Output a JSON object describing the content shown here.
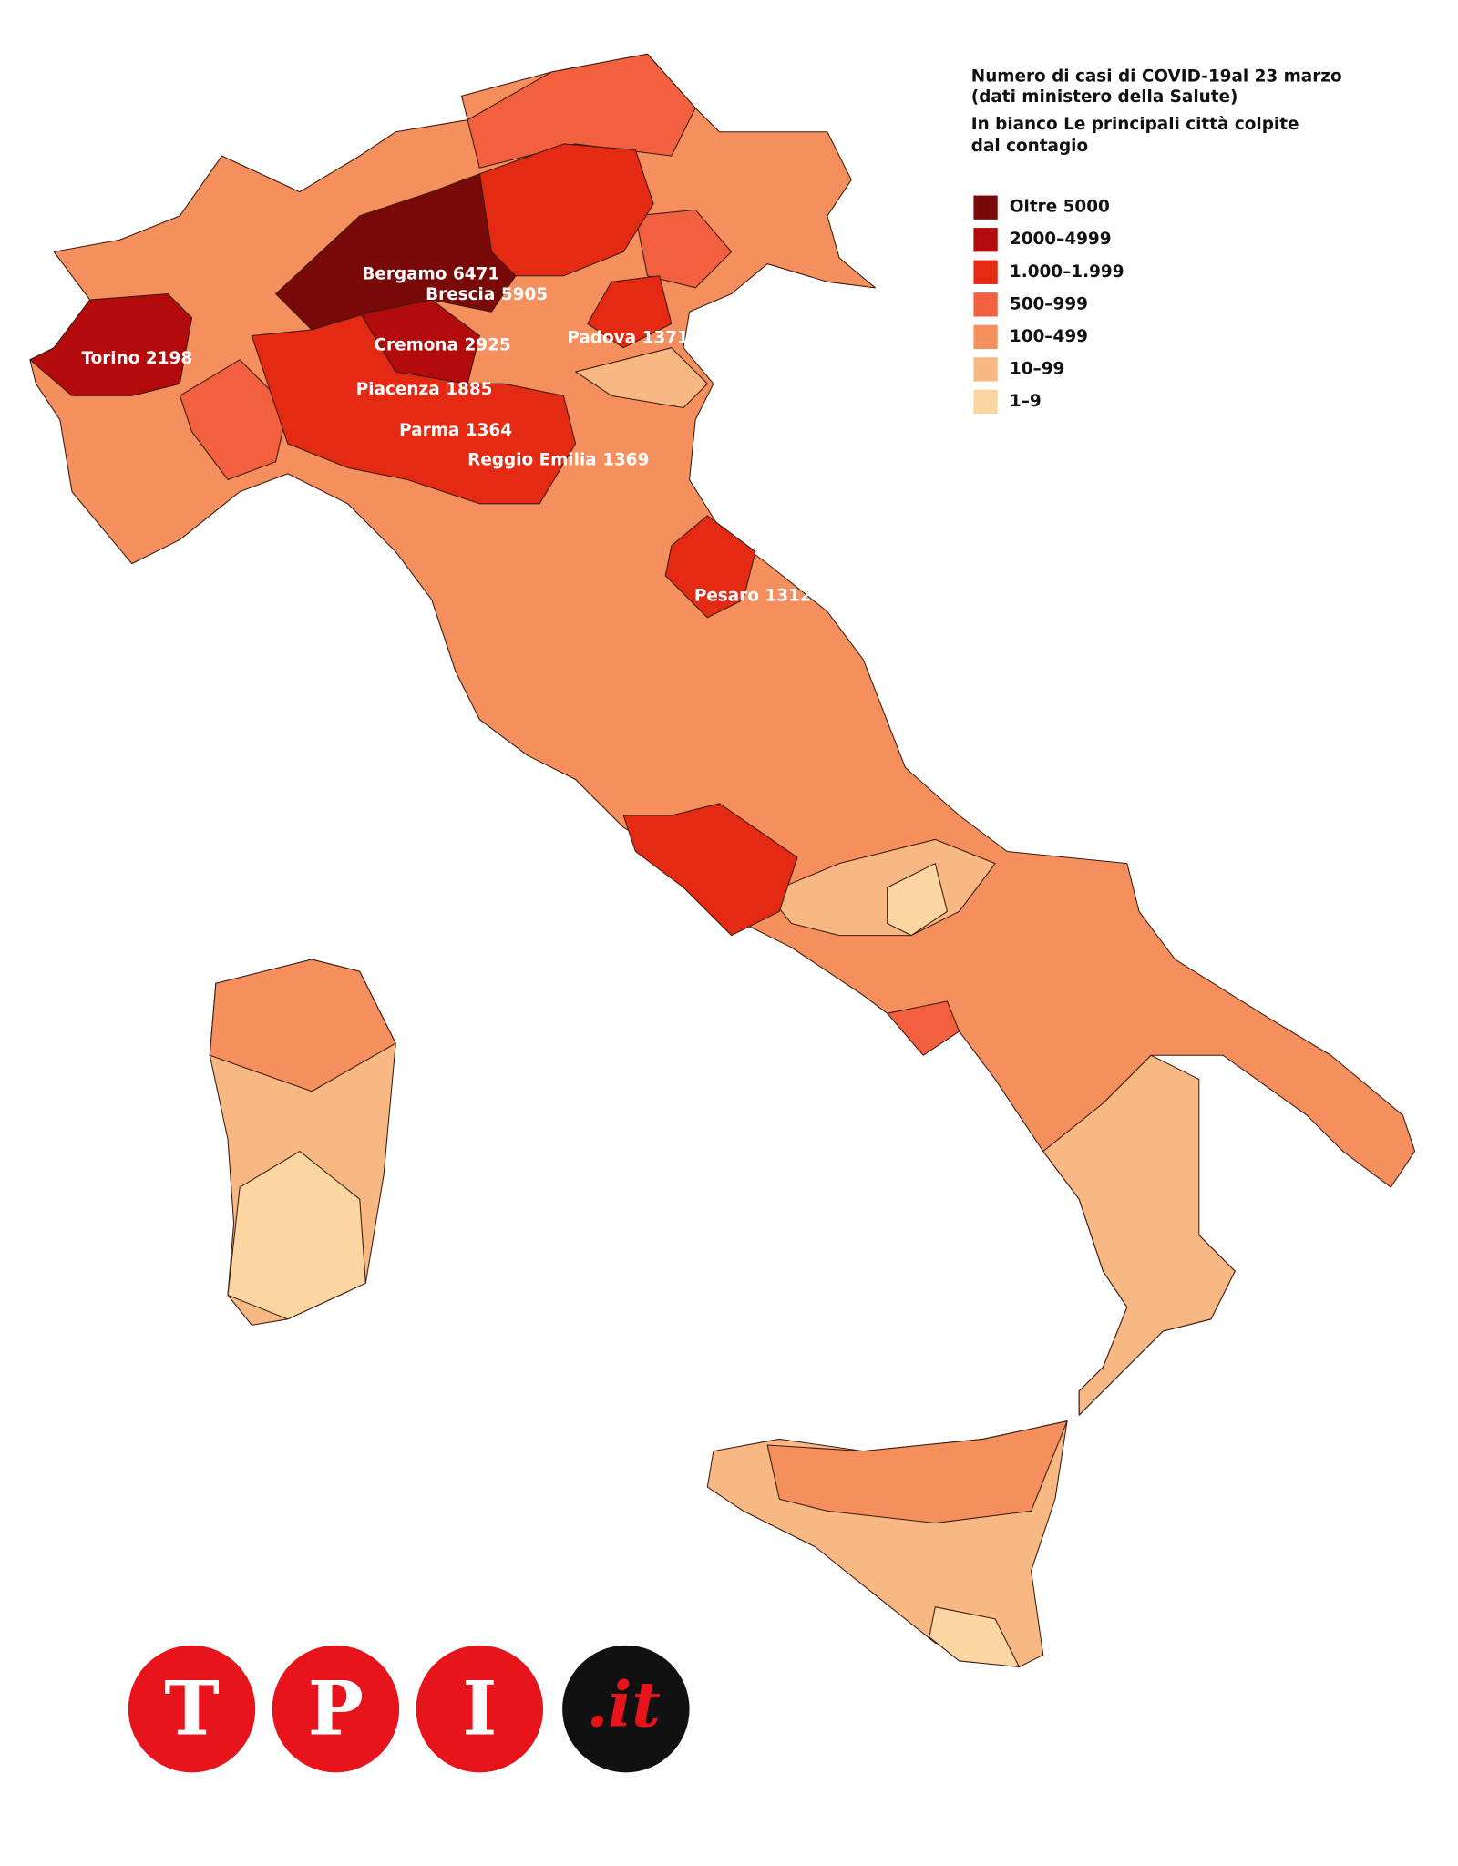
{
  "header": {
    "title_lines": [
      "Numero di casi di COVID-19al 23 marzo",
      "(dati ministero della Salute)"
    ],
    "subtitle_lines": [
      "In bianco Le principali città colpite",
      "dal contagio"
    ]
  },
  "legend": [
    {
      "label": "Oltre 5000",
      "color": "#7a0a0a"
    },
    {
      "label": "2000–4999",
      "color": "#b30b0b"
    },
    {
      "label": "1.000–1.999",
      "color": "#e52a14"
    },
    {
      "label": "500–999",
      "color": "#f2603f"
    },
    {
      "label": "100–499",
      "color": "#f58f5e"
    },
    {
      "label": "10–99",
      "color": "#f8b884"
    },
    {
      "label": "1–9",
      "color": "#fbd5a2"
    }
  ],
  "cities": [
    {
      "name": "Bergamo",
      "value": 6471
    },
    {
      "name": "Brescia",
      "value": 5905
    },
    {
      "name": "Torino",
      "value": 2198
    },
    {
      "name": "Cremona",
      "value": 2925
    },
    {
      "name": "Piacenza",
      "value": 1885
    },
    {
      "name": "Parma",
      "value": 1364
    },
    {
      "name": "Reggio Emilia",
      "value": 1369
    },
    {
      "name": "Padova",
      "value": 1371
    },
    {
      "name": "Pesaro",
      "value": 1312
    }
  ],
  "logo": {
    "letters": [
      "T",
      "P",
      "I"
    ],
    "suffix": ".it"
  }
}
